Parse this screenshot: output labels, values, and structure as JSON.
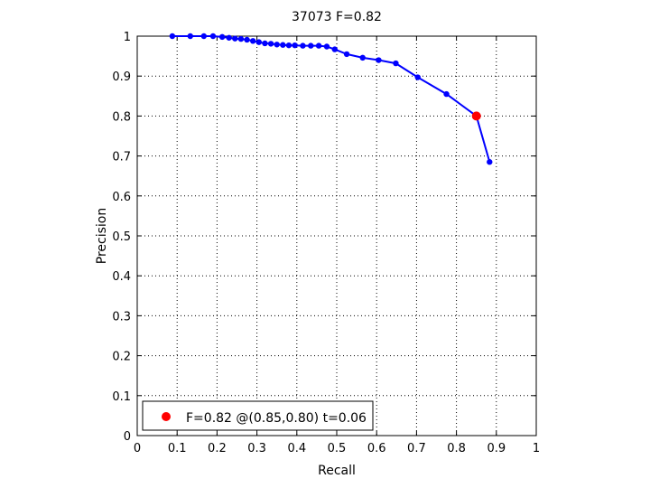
{
  "chart_data": {
    "type": "line",
    "title": "37073 F=0.82",
    "xlabel": "Recall",
    "ylabel": "Precision",
    "xlim": [
      0,
      1
    ],
    "ylim": [
      0,
      1
    ],
    "xticks": [
      "0",
      "0.1",
      "0.2",
      "0.3",
      "0.4",
      "0.5",
      "0.6",
      "0.7",
      "0.8",
      "0.9",
      "1"
    ],
    "yticks": [
      "0",
      "0.1",
      "0.2",
      "0.3",
      "0.4",
      "0.5",
      "0.6",
      "0.7",
      "0.8",
      "0.9",
      "1"
    ],
    "grid": true,
    "legend_position": "bottom-left",
    "series": [
      {
        "color": "#0000ff",
        "marker": "dot",
        "points": [
          [
            0.088,
            1.0
          ],
          [
            0.133,
            1.0
          ],
          [
            0.167,
            1.0
          ],
          [
            0.19,
            1.0
          ],
          [
            0.213,
            0.998
          ],
          [
            0.23,
            0.996
          ],
          [
            0.245,
            0.994
          ],
          [
            0.26,
            0.993
          ],
          [
            0.275,
            0.991
          ],
          [
            0.29,
            0.988
          ],
          [
            0.305,
            0.985
          ],
          [
            0.32,
            0.982
          ],
          [
            0.335,
            0.981
          ],
          [
            0.35,
            0.979
          ],
          [
            0.365,
            0.978
          ],
          [
            0.38,
            0.977
          ],
          [
            0.395,
            0.977
          ],
          [
            0.415,
            0.976
          ],
          [
            0.435,
            0.976
          ],
          [
            0.455,
            0.976
          ],
          [
            0.475,
            0.974
          ],
          [
            0.495,
            0.967
          ],
          [
            0.525,
            0.955
          ],
          [
            0.565,
            0.946
          ],
          [
            0.605,
            0.94
          ],
          [
            0.648,
            0.932
          ],
          [
            0.703,
            0.897
          ],
          [
            0.775,
            0.855
          ],
          [
            0.85,
            0.8
          ],
          [
            0.883,
            0.685
          ]
        ]
      }
    ],
    "best_point": {
      "x": 0.85,
      "y": 0.8,
      "color": "#ff0000"
    },
    "legend": {
      "label": "F=0.82 @(0.85,0.80) t=0.06",
      "color": "#ff0000"
    }
  }
}
